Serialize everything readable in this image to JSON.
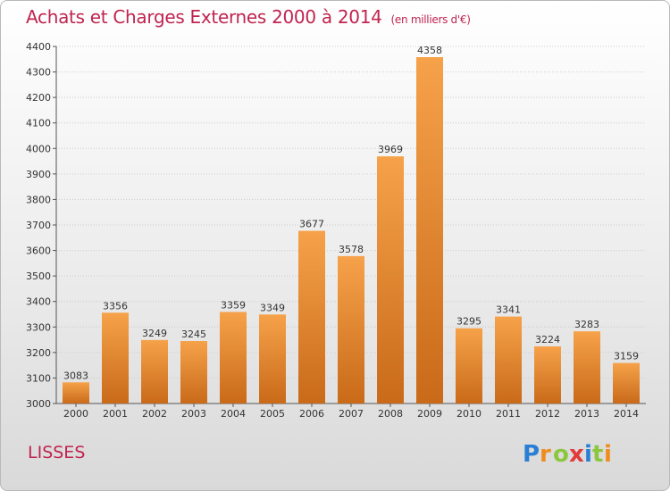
{
  "header": {
    "title": "Achats et Charges Externes 2000 à 2014",
    "unit": "(en milliers d'€)"
  },
  "footer": {
    "commune": "LISSES",
    "logo_text": "Proxiti"
  },
  "colors": {
    "bar_light": "#f6a24a",
    "bar_dark": "#c96a19",
    "title": "#c0244f",
    "grid": "#cccccc"
  },
  "chart_data": {
    "type": "bar",
    "title": "Achats et Charges Externes 2000 à 2014",
    "unit": "(en milliers d'€)",
    "categories": [
      "2000",
      "2001",
      "2002",
      "2003",
      "2004",
      "2005",
      "2006",
      "2007",
      "2008",
      "2009",
      "2010",
      "2011",
      "2012",
      "2013",
      "2014"
    ],
    "values": [
      3083,
      3356,
      3249,
      3245,
      3359,
      3349,
      3677,
      3578,
      3969,
      4358,
      3295,
      3341,
      3224,
      3283,
      3159
    ],
    "ylim": [
      3000,
      4400
    ],
    "yticks": [
      3000,
      3100,
      3200,
      3300,
      3400,
      3500,
      3600,
      3700,
      3800,
      3900,
      4000,
      4100,
      4200,
      4300,
      4400
    ],
    "grid": true
  }
}
